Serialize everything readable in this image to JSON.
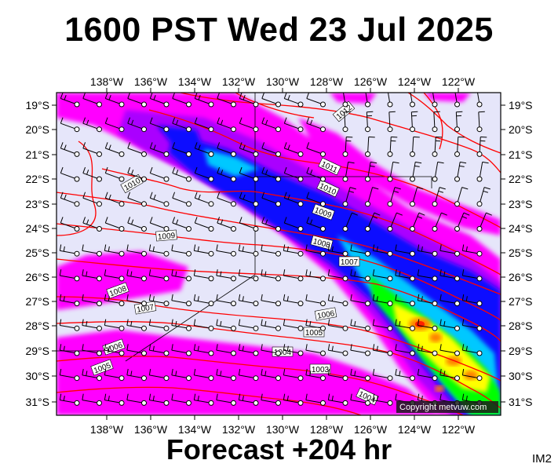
{
  "title": "1600 PST Wed 23 Jul 2025",
  "footer": "Forecast +204 hr",
  "corner_label": "IM2",
  "copyright": "Copyright metvuw.com",
  "map": {
    "lon_labels": [
      "138°W",
      "136°W",
      "134°W",
      "132°W",
      "130°W",
      "128°W",
      "126°W",
      "124°W",
      "122°W"
    ],
    "lat_labels": [
      "19°S",
      "20°S",
      "21°S",
      "22°S",
      "23°S",
      "24°S",
      "25°S",
      "26°S",
      "27°S",
      "28°S",
      "29°S",
      "30°S",
      "31°S"
    ],
    "isobar_labels": [
      "1012",
      "1011",
      "1010",
      "1010",
      "1009",
      "1009",
      "1008",
      "1008",
      "1007",
      "1007",
      "1006",
      "1006",
      "1005",
      "1005",
      "1004",
      "1004",
      "1003"
    ],
    "colors": {
      "background": "#e6e6fa",
      "precip_light": "#ff00ff",
      "precip_mid": "#aa00ff",
      "precip_blue": "#0000ff",
      "precip_cyan": "#00c8ff",
      "precip_green": "#00ff00",
      "precip_yellow": "#ffff00",
      "precip_orange": "#ff8000",
      "precip_red": "#ff0000",
      "isobar": "#ff0000"
    }
  }
}
